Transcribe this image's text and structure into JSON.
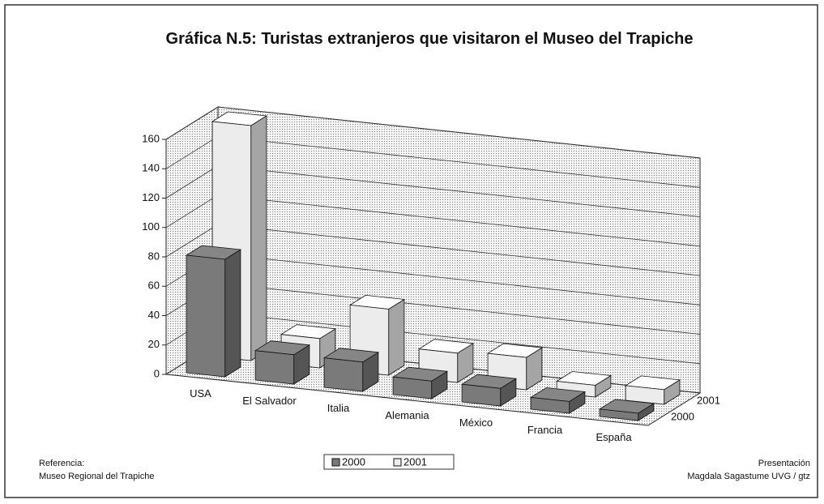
{
  "chart_data": {
    "type": "bar3d",
    "title": "Gráfica N.5: Turistas extranjeros que visitaron el Museo del Trapiche",
    "categories": [
      "USA",
      "El Salvador",
      "Italia",
      "Alemania",
      "México",
      "Francia",
      "España"
    ],
    "series": [
      {
        "name": "2000",
        "color": "#7a7a7a",
        "values": [
          80,
          20,
          20,
          12,
          12,
          8,
          5
        ]
      },
      {
        "name": "2001",
        "color": "#ececec",
        "values": [
          160,
          20,
          45,
          20,
          22,
          8,
          10
        ]
      }
    ],
    "ylim": [
      0,
      160
    ],
    "yticks": [
      0,
      20,
      40,
      60,
      80,
      100,
      120,
      140,
      160
    ],
    "grid": true,
    "legend": "bottom",
    "reference_label": "Referencia:",
    "reference": "Museo Regional del Trapiche",
    "credit_label": "Presentación",
    "credit": "Magdala Sagastume UVG / gtz"
  }
}
